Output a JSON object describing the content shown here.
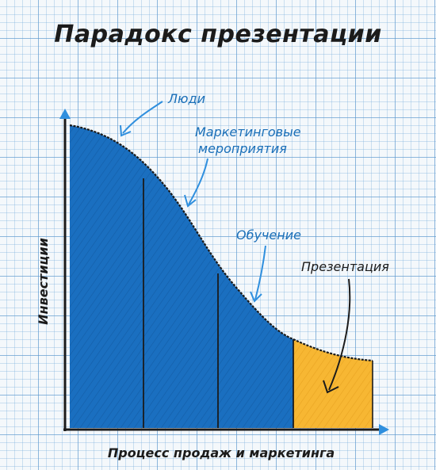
{
  "title": "Парадокс презентации",
  "axes": {
    "x_label": "Процесс продаж и маркетинга",
    "y_label": "Инвестиции"
  },
  "stages": [
    {
      "label": "Люди"
    },
    {
      "label": [
        "Маркетинговые",
        "мероприятия"
      ]
    },
    {
      "label": "Обучение"
    },
    {
      "label": "Презентация"
    }
  ],
  "colors": {
    "fill_blue": "#1a6fc0",
    "fill_orange": "#f7b733",
    "ink": "#1b1b1b",
    "label_blue": "#1a6fb8",
    "arrow_blue": "#2f8fde"
  }
}
